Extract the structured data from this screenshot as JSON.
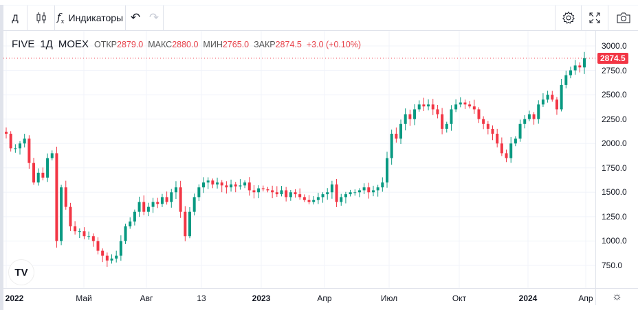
{
  "toolbar": {
    "interval": "Д",
    "indicators": "Индикаторы",
    "fx": "fx"
  },
  "legend": {
    "symbol": "FIVE",
    "interval": "1Д",
    "exchange": "MOEX",
    "open_label": "ОТКР",
    "open": "2879.0",
    "high_label": "МАКС",
    "high": "2880.0",
    "low_label": "МИН",
    "low": "2765.0",
    "close_label": "ЗАКР",
    "close": "2874.5",
    "change": "+3.0 (+0.10%)"
  },
  "colors": {
    "up": "#089981",
    "down": "#f23645",
    "grid": "#f0f3fa",
    "last": "#f23645"
  },
  "chart_data": {
    "type": "candlestick",
    "ylim": [
      620,
      3100
    ],
    "price_ticks": [
      "3000.0",
      "2750.0",
      "2500.0",
      "2250.0",
      "2000.0",
      "1750.0",
      "1500.0",
      "1250.0",
      "1000.0",
      "750.0"
    ],
    "time_ticks": [
      "2022",
      "Май",
      "Авг",
      "13",
      "2023",
      "Апр",
      "Июл",
      "Окт",
      "2024",
      "Апр"
    ],
    "last_price": "2874.5",
    "closes": [
      2100,
      1950,
      1950,
      2000,
      2050,
      1800,
      1600,
      1700,
      1650,
      1850,
      1900,
      1000,
      1550,
      1350,
      1150,
      1100,
      1100,
      1050,
      1050,
      1000,
      900,
      850,
      800,
      820,
      850,
      1000,
      1150,
      1200,
      1300,
      1400,
      1300,
      1350,
      1400,
      1380,
      1450,
      1400,
      1500,
      1550,
      1300,
      1050,
      1300,
      1450,
      1550,
      1600,
      1620,
      1580,
      1600,
      1570,
      1550,
      1580,
      1560,
      1570,
      1600,
      1520,
      1500,
      1540,
      1530,
      1520,
      1500,
      1480,
      1520,
      1450,
      1500,
      1480,
      1450,
      1420,
      1400,
      1420,
      1450,
      1480,
      1500,
      1580,
      1400,
      1450,
      1480,
      1500,
      1500,
      1520,
      1550,
      1500,
      1520,
      1550,
      1600,
      1850,
      2100,
      2050,
      2200,
      2300,
      2250,
      2350,
      2400,
      2380,
      2400,
      2350,
      2300,
      2150,
      2200,
      2350,
      2400,
      2420,
      2400,
      2380,
      2350,
      2250,
      2200,
      2150,
      2100,
      2000,
      1900,
      1850,
      2000,
      2050,
      2200,
      2250,
      2300,
      2250,
      2400,
      2450,
      2500,
      2450,
      2350,
      2600,
      2700,
      2750,
      2800,
      2780,
      2874.5
    ]
  }
}
